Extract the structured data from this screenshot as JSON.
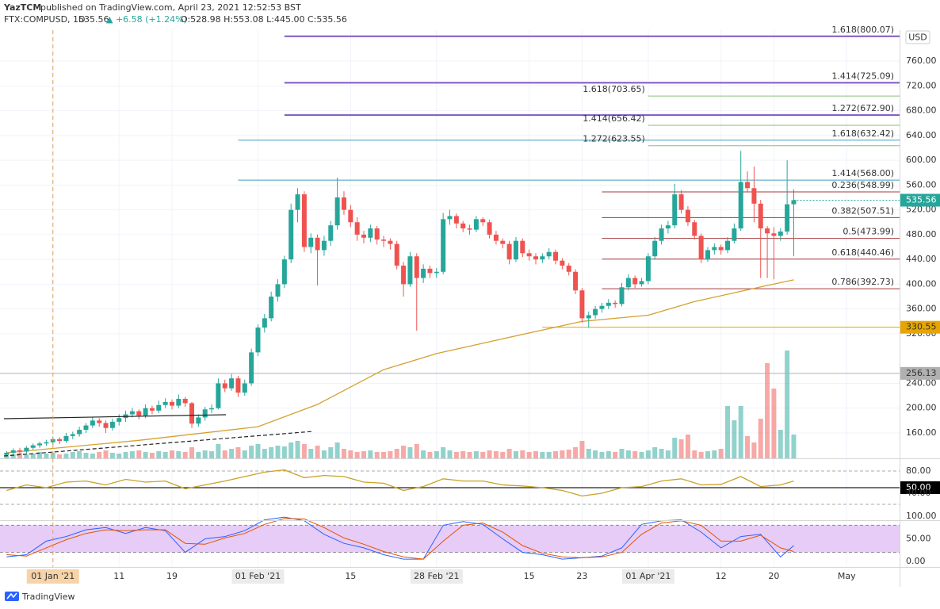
{
  "chart_data": {
    "type": "candlestick",
    "header": {
      "author": "YazTCM",
      "published": "published on TradingView.com, April 23, 2021 12:52:53 BST",
      "symbol": "FTX:COMPUSD, 1D",
      "price": "535.56",
      "change": "▲ +6.58 (+1.24%)",
      "ohlc": "O:528.98 H:553.08 L:445.00 C:535.56"
    },
    "currency": "USD",
    "brand": "TradingView",
    "up_color": "#26a69a",
    "down_color": "#ef5350",
    "xlim": [
      -1,
      135
    ],
    "xticks": [
      {
        "value": 7,
        "label": "01 Jan '21"
      },
      {
        "value": 17,
        "label": "11"
      },
      {
        "value": 25,
        "label": "19"
      },
      {
        "value": 38,
        "label": "01 Feb '21"
      },
      {
        "value": 52,
        "label": "15"
      },
      {
        "value": 65,
        "label": "28 Feb '21"
      },
      {
        "value": 79,
        "label": "15"
      },
      {
        "value": 87,
        "label": "23"
      },
      {
        "value": 97,
        "label": "01 Apr '21"
      },
      {
        "value": 108,
        "label": "12"
      },
      {
        "value": 116,
        "label": "20"
      },
      {
        "value": 127,
        "label": "May"
      }
    ],
    "crosshair_x": 7,
    "ylim": [
      119,
      810
    ],
    "yticks": [
      {
        "value": 760,
        "label": "760.00"
      },
      {
        "value": 720,
        "label": "720.00"
      },
      {
        "value": 680,
        "label": "680.00"
      },
      {
        "value": 640,
        "label": "640.00"
      },
      {
        "value": 600,
        "label": "600.00"
      },
      {
        "value": 560,
        "label": "560.00"
      },
      {
        "value": 520,
        "label": "520.00"
      },
      {
        "value": 480,
        "label": "480.00"
      },
      {
        "value": 440,
        "label": "440.00"
      },
      {
        "value": 400,
        "label": "400.00"
      },
      {
        "value": 360,
        "label": "360.00"
      },
      {
        "value": 320,
        "label": "320.00"
      },
      {
        "value": 240,
        "label": "240.00"
      },
      {
        "value": 200,
        "label": "200.00"
      },
      {
        "value": 160,
        "label": "160.00"
      }
    ],
    "candles": [
      [
        125,
        131,
        121,
        128
      ],
      [
        128,
        135,
        125,
        132
      ],
      [
        132,
        136,
        126,
        130
      ],
      [
        130,
        139,
        127,
        136
      ],
      [
        136,
        143,
        133,
        140
      ],
      [
        140,
        146,
        136,
        143
      ],
      [
        143,
        149,
        139,
        145
      ],
      [
        145,
        154,
        141,
        150
      ],
      [
        150,
        153,
        142,
        147
      ],
      [
        147,
        160,
        144,
        155
      ],
      [
        155,
        162,
        150,
        158
      ],
      [
        158,
        170,
        154,
        165
      ],
      [
        165,
        176,
        160,
        172
      ],
      [
        172,
        186,
        168,
        180
      ],
      [
        180,
        184,
        170,
        176
      ],
      [
        176,
        180,
        160,
        168
      ],
      [
        168,
        183,
        164,
        178
      ],
      [
        178,
        190,
        172,
        184
      ],
      [
        184,
        196,
        178,
        190
      ],
      [
        190,
        200,
        185,
        195
      ],
      [
        195,
        198,
        182,
        188
      ],
      [
        188,
        206,
        184,
        200
      ],
      [
        200,
        204,
        190,
        196
      ],
      [
        196,
        212,
        192,
        205
      ],
      [
        205,
        216,
        200,
        210
      ],
      [
        210,
        214,
        198,
        204
      ],
      [
        204,
        222,
        200,
        215
      ],
      [
        215,
        218,
        202,
        208
      ],
      [
        208,
        210,
        168,
        175
      ],
      [
        175,
        190,
        170,
        185
      ],
      [
        185,
        202,
        180,
        198
      ],
      [
        198,
        206,
        192,
        200
      ],
      [
        200,
        248,
        198,
        240
      ],
      [
        240,
        246,
        226,
        232
      ],
      [
        232,
        255,
        228,
        248
      ],
      [
        248,
        252,
        218,
        225
      ],
      [
        225,
        246,
        220,
        240
      ],
      [
        240,
        296,
        236,
        290
      ],
      [
        290,
        335,
        284,
        330
      ],
      [
        330,
        352,
        322,
        345
      ],
      [
        345,
        388,
        340,
        380
      ],
      [
        380,
        408,
        372,
        400
      ],
      [
        400,
        446,
        394,
        440
      ],
      [
        440,
        530,
        434,
        520
      ],
      [
        520,
        555,
        500,
        545
      ],
      [
        545,
        550,
        452,
        460
      ],
      [
        460,
        482,
        450,
        475
      ],
      [
        475,
        480,
        398,
        455
      ],
      [
        455,
        478,
        446,
        470
      ],
      [
        470,
        502,
        462,
        495
      ],
      [
        495,
        572,
        488,
        540
      ],
      [
        540,
        550,
        512,
        520
      ],
      [
        520,
        528,
        492,
        500
      ],
      [
        500,
        508,
        470,
        480
      ],
      [
        480,
        486,
        466,
        475
      ],
      [
        475,
        496,
        468,
        490
      ],
      [
        490,
        494,
        464,
        472
      ],
      [
        472,
        478,
        460,
        470
      ],
      [
        470,
        474,
        456,
        465
      ],
      [
        465,
        470,
        424,
        430
      ],
      [
        430,
        436,
        380,
        400
      ],
      [
        400,
        452,
        396,
        445
      ],
      [
        445,
        450,
        325,
        410
      ],
      [
        410,
        432,
        402,
        425
      ],
      [
        425,
        430,
        410,
        418
      ],
      [
        418,
        426,
        410,
        420
      ],
      [
        420,
        515,
        416,
        505
      ],
      [
        505,
        520,
        496,
        510
      ],
      [
        510,
        514,
        490,
        498
      ],
      [
        498,
        502,
        484,
        490
      ],
      [
        490,
        496,
        480,
        488
      ],
      [
        488,
        510,
        484,
        505
      ],
      [
        505,
        508,
        494,
        500
      ],
      [
        500,
        504,
        474,
        480
      ],
      [
        480,
        486,
        464,
        470
      ],
      [
        470,
        474,
        458,
        465
      ],
      [
        465,
        470,
        432,
        440
      ],
      [
        440,
        476,
        436,
        470
      ],
      [
        470,
        474,
        444,
        450
      ],
      [
        450,
        456,
        438,
        445
      ],
      [
        445,
        450,
        432,
        440
      ],
      [
        440,
        450,
        434,
        445
      ],
      [
        445,
        458,
        440,
        452
      ],
      [
        452,
        456,
        432,
        438
      ],
      [
        438,
        442,
        424,
        430
      ],
      [
        430,
        434,
        414,
        420
      ],
      [
        420,
        424,
        384,
        390
      ],
      [
        390,
        394,
        338,
        345
      ],
      [
        345,
        356,
        330,
        350
      ],
      [
        350,
        365,
        344,
        360
      ],
      [
        360,
        370,
        354,
        365
      ],
      [
        365,
        376,
        360,
        370
      ],
      [
        370,
        374,
        362,
        368
      ],
      [
        368,
        402,
        364,
        395
      ],
      [
        395,
        416,
        390,
        410
      ],
      [
        410,
        414,
        394,
        400
      ],
      [
        400,
        410,
        396,
        405
      ],
      [
        405,
        450,
        400,
        445
      ],
      [
        445,
        476,
        440,
        470
      ],
      [
        470,
        496,
        464,
        490
      ],
      [
        490,
        502,
        482,
        495
      ],
      [
        495,
        562,
        490,
        545
      ],
      [
        545,
        552,
        514,
        520
      ],
      [
        520,
        526,
        494,
        500
      ],
      [
        500,
        504,
        472,
        478
      ],
      [
        478,
        482,
        434,
        440
      ],
      [
        440,
        460,
        436,
        455
      ],
      [
        455,
        466,
        448,
        460
      ],
      [
        460,
        464,
        448,
        455
      ],
      [
        455,
        476,
        450,
        470
      ],
      [
        470,
        498,
        466,
        490
      ],
      [
        490,
        615,
        486,
        565
      ],
      [
        565,
        582,
        548,
        555
      ],
      [
        555,
        590,
        500,
        530
      ],
      [
        530,
        536,
        410,
        490
      ],
      [
        490,
        494,
        410,
        482
      ],
      [
        482,
        492,
        408,
        478
      ],
      [
        478,
        490,
        470,
        485
      ],
      [
        485,
        600,
        480,
        528.98
      ],
      [
        528.98,
        553.08,
        445,
        535.56
      ]
    ],
    "volume": [
      6,
      5,
      7,
      5,
      6,
      8,
      6,
      7,
      5,
      6,
      8,
      9,
      7,
      6,
      8,
      10,
      7,
      6,
      8,
      9,
      10,
      8,
      7,
      9,
      8,
      10,
      9,
      8,
      14,
      8,
      10,
      9,
      18,
      10,
      12,
      14,
      10,
      16,
      18,
      12,
      14,
      16,
      15,
      20,
      22,
      18,
      12,
      16,
      10,
      14,
      20,
      12,
      10,
      8,
      9,
      10,
      8,
      8,
      9,
      12,
      16,
      14,
      18,
      10,
      8,
      9,
      14,
      10,
      8,
      9,
      8,
      9,
      8,
      10,
      9,
      8,
      12,
      9,
      10,
      8,
      9,
      8,
      8,
      9,
      10,
      11,
      14,
      22,
      12,
      10,
      8,
      9,
      8,
      12,
      10,
      9,
      8,
      10,
      14,
      12,
      10,
      26,
      24,
      30,
      10,
      8,
      9,
      10,
      12,
      66,
      48,
      66,
      28,
      20,
      50,
      120,
      88,
      36,
      136,
      30
    ],
    "ma": {
      "color": "#d4a030",
      "x": [
        0,
        7,
        20,
        38,
        47,
        57,
        65,
        75,
        87,
        97,
        104,
        110,
        115,
        119
      ],
      "values": [
        128,
        135,
        148,
        170,
        206,
        262,
        288,
        312,
        340,
        350,
        372,
        386,
        398,
        407
      ]
    },
    "levels": [
      {
        "label": "1.618(800.07)",
        "value": 800.07,
        "color": "#7e57c2",
        "from": 42
      },
      {
        "label": "1.414(725.09)",
        "value": 725.09,
        "color": "#7e57c2",
        "from": 42
      },
      {
        "label": "1.618(703.65)",
        "value": 703.65,
        "color": "#8bbf7a",
        "from": 97,
        "label_at": "start"
      },
      {
        "label": "1.272(672.90)",
        "value": 672.9,
        "color": "#7e57c2",
        "from": 42
      },
      {
        "label": "1.414(656.42)",
        "value": 656.42,
        "color": "#8bbf7a",
        "from": 97,
        "label_at": "start"
      },
      {
        "label": "1.618(632.42)",
        "value": 632.42,
        "color": "#3d9fc0",
        "from": 35
      },
      {
        "label": "1.272(623.55)",
        "value": 623.55,
        "color": "#8bbf7a",
        "from": 97,
        "label_at": "start"
      },
      {
        "label": "1.414(568.00)",
        "value": 568,
        "color": "#3d9fc0",
        "from": 35
      },
      {
        "label": "0.236(548.99)",
        "value": 548.99,
        "color": "#a33b3b",
        "from": 90
      },
      {
        "label": "0.382(507.51)",
        "value": 507.51,
        "color": "#a33b3b",
        "from": 90
      },
      {
        "label": "0.5(473.99)",
        "value": 473.99,
        "color": "#a33b3b",
        "from": 90
      },
      {
        "label": "0.618(440.46)",
        "value": 440.46,
        "color": "#a33b3b",
        "from": 90
      },
      {
        "label": "0.786(392.73)",
        "value": 392.73,
        "color": "#a33b3b",
        "from": 90
      },
      {
        "label": "330.55",
        "value": 330.55,
        "color": "#e6a500",
        "from": 81,
        "label_at": "axis"
      },
      {
        "label": "256.13",
        "value": 256.13,
        "color": "#b0b0b0",
        "from": -1,
        "label_at": "axis"
      }
    ],
    "last_price_label": "535.56",
    "rsi": {
      "color": "#c9a227",
      "ylim": [
        0,
        100
      ],
      "yticks": [
        {
          "value": 80,
          "label": "80.00"
        },
        {
          "value": 50,
          "label": "50.00"
        },
        {
          "value": 40,
          "label": "40.00"
        }
      ],
      "levels": [
        80,
        50,
        20
      ],
      "x": [
        0,
        3,
        6,
        9,
        12,
        15,
        18,
        21,
        24,
        27,
        30,
        33,
        36,
        39,
        42,
        45,
        48,
        51,
        54,
        57,
        60,
        63,
        66,
        69,
        72,
        75,
        78,
        81,
        84,
        87,
        90,
        93,
        96,
        99,
        102,
        105,
        108,
        111,
        114,
        117,
        119
      ],
      "values": [
        45,
        55,
        50,
        60,
        62,
        55,
        65,
        60,
        62,
        48,
        55,
        62,
        70,
        78,
        82,
        68,
        72,
        70,
        60,
        58,
        45,
        52,
        66,
        62,
        62,
        55,
        53,
        50,
        45,
        35,
        40,
        50,
        52,
        62,
        66,
        55,
        56,
        70,
        52,
        55,
        62
      ]
    },
    "stoch": {
      "ylim": [
        0,
        100
      ],
      "yticks": [
        {
          "value": 100,
          "label": "100.00"
        },
        {
          "value": 50,
          "label": "50.00"
        },
        {
          "value": 0,
          "label": "0.00"
        }
      ],
      "band": [
        20,
        80
      ],
      "x": [
        0,
        3,
        6,
        9,
        12,
        15,
        18,
        21,
        24,
        27,
        30,
        33,
        36,
        39,
        42,
        45,
        48,
        51,
        54,
        57,
        60,
        63,
        66,
        69,
        72,
        75,
        78,
        81,
        84,
        87,
        90,
        93,
        96,
        99,
        102,
        105,
        108,
        111,
        114,
        117,
        119
      ],
      "series": [
        {
          "color": "#2962ff",
          "values": [
            10,
            15,
            45,
            55,
            70,
            75,
            62,
            75,
            68,
            20,
            50,
            55,
            68,
            92,
            98,
            90,
            60,
            40,
            30,
            15,
            5,
            5,
            80,
            88,
            82,
            50,
            20,
            15,
            5,
            8,
            12,
            30,
            82,
            90,
            92,
            65,
            30,
            55,
            60,
            10,
            35
          ]
        },
        {
          "color": "#e65100",
          "values": [
            15,
            12,
            30,
            48,
            62,
            70,
            68,
            70,
            70,
            40,
            38,
            52,
            62,
            82,
            95,
            94,
            75,
            52,
            38,
            22,
            10,
            5,
            45,
            80,
            85,
            65,
            35,
            18,
            10,
            8,
            10,
            20,
            60,
            85,
            90,
            80,
            45,
            45,
            58,
            30,
            22
          ]
        }
      ]
    }
  }
}
